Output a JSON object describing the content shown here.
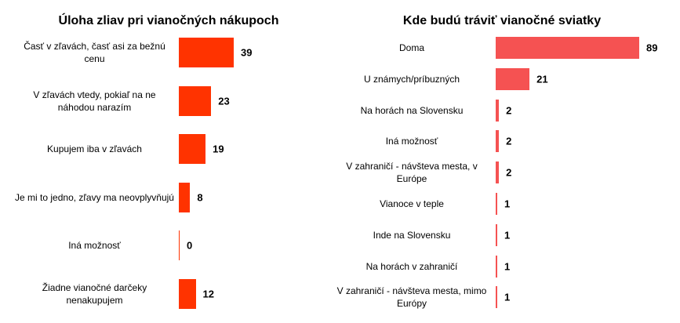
{
  "chart_data": [
    {
      "type": "hbar",
      "title": "Úloha zliav pri vianočných nákupoch",
      "color": "#ff3300",
      "categories": [
        "Časť v zľavách, časť asi za bežnú cenu",
        "V zľavách vtedy, pokiaľ na ne náhodou narazím",
        "Kupujem iba v zľavách",
        "Je mi to jedno, zľavy ma neovplyvňujú",
        "Iná možnosť",
        "Žiadne vianočné  darčeky nenakupujem"
      ],
      "values": [
        39,
        23,
        19,
        8,
        0,
        12
      ]
    },
    {
      "type": "hbar",
      "title": "Kde budú tráviť vianočné sviatky",
      "color": "#f55252",
      "categories": [
        "Doma",
        "U známych/príbuzných",
        "Na horách na Slovensku",
        "Iná možnosť",
        "V zahraničí - návšteva mesta,  v Európe",
        "Vianoce v teple",
        "Inde na Slovensku",
        "Na horách v zahraničí",
        "V zahraničí - návšteva mesta, mimo Európy"
      ],
      "values": [
        89,
        21,
        2,
        2,
        2,
        1,
        1,
        1,
        1
      ]
    }
  ]
}
